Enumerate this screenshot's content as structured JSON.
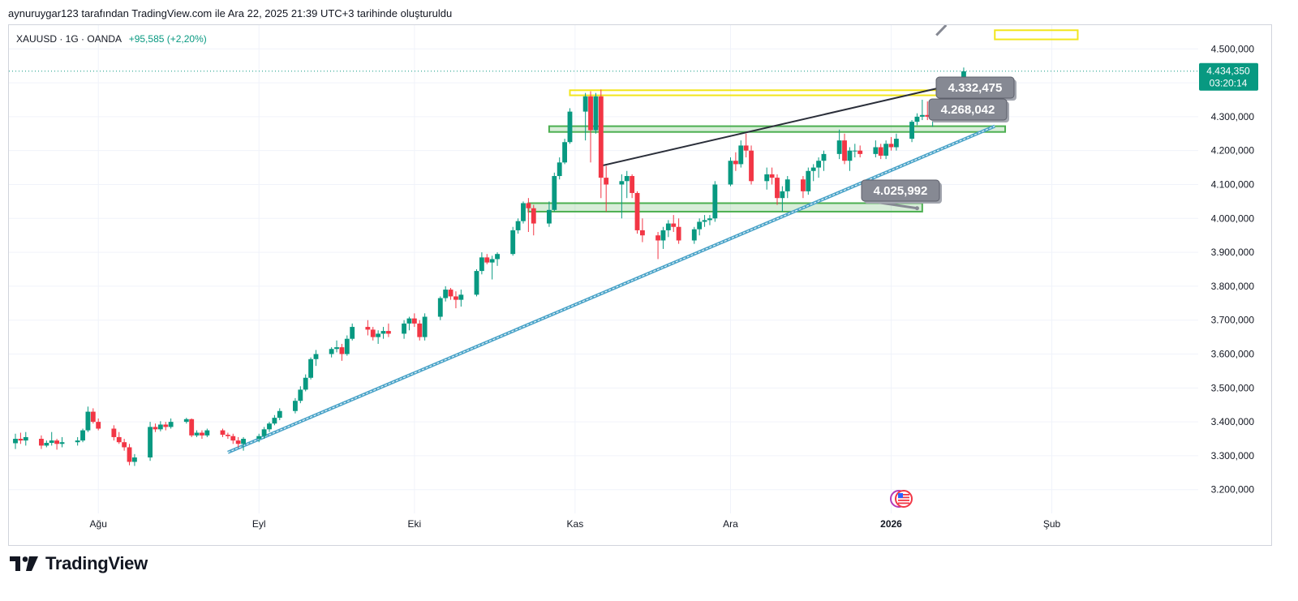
{
  "header": {
    "caption": "aynuruygar123 tarafından TradingView.com ile Ara 22, 2025 21:39 UTC+3 tarihinde oluşturuldu"
  },
  "legend": {
    "symbol": "XAUUSD · 1G · OANDA",
    "change": "+95,585 (+2,20%)"
  },
  "brand": {
    "name": "TradingView",
    "logo_icon": "tradingview-logo-icon"
  },
  "colors": {
    "up": "#089981",
    "down": "#f23645",
    "price_tag": "#089981",
    "callout": "#868993",
    "trend_support": "#4aa3c8",
    "zone_yellow": "#f2e61c",
    "zone_green": "#4caf50"
  },
  "chart_data": {
    "type": "candlestick",
    "symbol": "XAUUSD",
    "interval": "1G",
    "ylim": [
      3130,
      4570
    ],
    "y_ticks": [
      "3.200,000",
      "3.300,000",
      "3.400,000",
      "3.500,000",
      "3.600,000",
      "3.700,000",
      "3.800,000",
      "3.900,000",
      "4.000,000",
      "4.100,000",
      "4.200,000",
      "4.300,000",
      "4.400,000",
      "4.500,000"
    ],
    "y_tick_values": [
      3200,
      3300,
      3400,
      3500,
      3600,
      3700,
      3800,
      3900,
      4000,
      4100,
      4200,
      4300,
      4400,
      4500
    ],
    "x_ticks": [
      {
        "label": "Ağu",
        "date": "2025-08-01",
        "bold": false
      },
      {
        "label": "Eyl",
        "date": "2025-09-01",
        "bold": false
      },
      {
        "label": "Eki",
        "date": "2025-10-01",
        "bold": false
      },
      {
        "label": "Kas",
        "date": "2025-11-01",
        "bold": false
      },
      {
        "label": "Ara",
        "date": "2025-12-01",
        "bold": false
      },
      {
        "label": "2026",
        "date": "2026-01-01",
        "bold": true
      },
      {
        "label": "Şub",
        "date": "2026-02-01",
        "bold": false
      }
    ],
    "x_range": [
      "2025-07-16",
      "2026-02-28"
    ],
    "last_price": {
      "value": "4.434,350",
      "countdown": "03:20:14",
      "price": 4434.35
    },
    "candles": [
      {
        "d": "2025-07-16",
        "o": 3337,
        "h": 3365,
        "l": 3320,
        "c": 3350
      },
      {
        "d": "2025-07-17",
        "o": 3350,
        "h": 3368,
        "l": 3335,
        "c": 3345
      },
      {
        "d": "2025-07-18",
        "o": 3345,
        "h": 3370,
        "l": 3330,
        "c": 3355
      },
      {
        "d": "2025-07-21",
        "o": 3350,
        "h": 3360,
        "l": 3320,
        "c": 3330
      },
      {
        "d": "2025-07-22",
        "o": 3330,
        "h": 3345,
        "l": 3325,
        "c": 3338
      },
      {
        "d": "2025-07-23",
        "o": 3338,
        "h": 3370,
        "l": 3330,
        "c": 3345
      },
      {
        "d": "2025-07-24",
        "o": 3345,
        "h": 3350,
        "l": 3318,
        "c": 3335
      },
      {
        "d": "2025-07-25",
        "o": 3335,
        "h": 3355,
        "l": 3325,
        "c": 3340
      },
      {
        "d": "2025-07-28",
        "o": 3340,
        "h": 3355,
        "l": 3330,
        "c": 3345
      },
      {
        "d": "2025-07-29",
        "o": 3345,
        "h": 3380,
        "l": 3340,
        "c": 3375
      },
      {
        "d": "2025-07-30",
        "o": 3375,
        "h": 3445,
        "l": 3370,
        "c": 3430
      },
      {
        "d": "2025-07-31",
        "o": 3430,
        "h": 3440,
        "l": 3395,
        "c": 3400
      },
      {
        "d": "2025-08-01",
        "o": 3400,
        "h": 3410,
        "l": 3375,
        "c": 3380
      },
      {
        "d": "2025-08-04",
        "o": 3380,
        "h": 3390,
        "l": 3345,
        "c": 3355
      },
      {
        "d": "2025-08-05",
        "o": 3355,
        "h": 3370,
        "l": 3335,
        "c": 3340
      },
      {
        "d": "2025-08-06",
        "o": 3340,
        "h": 3350,
        "l": 3315,
        "c": 3325
      },
      {
        "d": "2025-08-07",
        "o": 3325,
        "h": 3335,
        "l": 3272,
        "c": 3282
      },
      {
        "d": "2025-08-08",
        "o": 3282,
        "h": 3305,
        "l": 3270,
        "c": 3295
      },
      {
        "d": "2025-08-11",
        "o": 3295,
        "h": 3400,
        "l": 3285,
        "c": 3385
      },
      {
        "d": "2025-08-12",
        "o": 3385,
        "h": 3395,
        "l": 3370,
        "c": 3378
      },
      {
        "d": "2025-08-13",
        "o": 3378,
        "h": 3402,
        "l": 3372,
        "c": 3392
      },
      {
        "d": "2025-08-14",
        "o": 3392,
        "h": 3400,
        "l": 3375,
        "c": 3385
      },
      {
        "d": "2025-08-15",
        "o": 3385,
        "h": 3410,
        "l": 3380,
        "c": 3400
      },
      {
        "d": "2025-08-18",
        "o": 3400,
        "h": 3412,
        "l": 3395,
        "c": 3408
      },
      {
        "d": "2025-08-19",
        "o": 3408,
        "h": 3410,
        "l": 3355,
        "c": 3360
      },
      {
        "d": "2025-08-20",
        "o": 3360,
        "h": 3375,
        "l": 3355,
        "c": 3368
      },
      {
        "d": "2025-08-21",
        "o": 3368,
        "h": 3375,
        "l": 3350,
        "c": 3360
      },
      {
        "d": "2025-08-22",
        "o": 3360,
        "h": 3380,
        "l": 3355,
        "c": 3375
      },
      {
        "d": "2025-08-25",
        "o": 3375,
        "h": 3380,
        "l": 3355,
        "c": 3362
      },
      {
        "d": "2025-08-26",
        "o": 3362,
        "h": 3368,
        "l": 3350,
        "c": 3358
      },
      {
        "d": "2025-08-27",
        "o": 3358,
        "h": 3365,
        "l": 3335,
        "c": 3345
      },
      {
        "d": "2025-08-28",
        "o": 3345,
        "h": 3355,
        "l": 3325,
        "c": 3335
      },
      {
        "d": "2025-08-29",
        "o": 3335,
        "h": 3355,
        "l": 3315,
        "c": 3350
      },
      {
        "d": "2025-09-01",
        "o": 3350,
        "h": 3365,
        "l": 3340,
        "c": 3358
      },
      {
        "d": "2025-09-02",
        "o": 3358,
        "h": 3385,
        "l": 3350,
        "c": 3378
      },
      {
        "d": "2025-09-03",
        "o": 3378,
        "h": 3400,
        "l": 3370,
        "c": 3395
      },
      {
        "d": "2025-09-04",
        "o": 3395,
        "h": 3420,
        "l": 3390,
        "c": 3412
      },
      {
        "d": "2025-09-05",
        "o": 3412,
        "h": 3440,
        "l": 3405,
        "c": 3432
      },
      {
        "d": "2025-09-08",
        "o": 3432,
        "h": 3470,
        "l": 3425,
        "c": 3462
      },
      {
        "d": "2025-09-09",
        "o": 3462,
        "h": 3505,
        "l": 3455,
        "c": 3495
      },
      {
        "d": "2025-09-10",
        "o": 3495,
        "h": 3540,
        "l": 3490,
        "c": 3530
      },
      {
        "d": "2025-09-11",
        "o": 3530,
        "h": 3590,
        "l": 3525,
        "c": 3585
      },
      {
        "d": "2025-09-12",
        "o": 3585,
        "h": 3612,
        "l": 3565,
        "c": 3600
      },
      {
        "d": "2025-09-15",
        "o": 3600,
        "h": 3620,
        "l": 3590,
        "c": 3615
      },
      {
        "d": "2025-09-16",
        "o": 3615,
        "h": 3640,
        "l": 3605,
        "c": 3620
      },
      {
        "d": "2025-09-17",
        "o": 3620,
        "h": 3630,
        "l": 3580,
        "c": 3600
      },
      {
        "d": "2025-09-18",
        "o": 3600,
        "h": 3655,
        "l": 3595,
        "c": 3645
      },
      {
        "d": "2025-09-19",
        "o": 3645,
        "h": 3690,
        "l": 3640,
        "c": 3680
      },
      {
        "d": "2025-09-22",
        "o": 3680,
        "h": 3700,
        "l": 3655,
        "c": 3672
      },
      {
        "d": "2025-09-23",
        "o": 3672,
        "h": 3680,
        "l": 3640,
        "c": 3650
      },
      {
        "d": "2025-09-24",
        "o": 3650,
        "h": 3670,
        "l": 3630,
        "c": 3660
      },
      {
        "d": "2025-09-25",
        "o": 3660,
        "h": 3680,
        "l": 3645,
        "c": 3668
      },
      {
        "d": "2025-09-26",
        "o": 3668,
        "h": 3690,
        "l": 3650,
        "c": 3660
      },
      {
        "d": "2025-09-29",
        "o": 3660,
        "h": 3700,
        "l": 3645,
        "c": 3690
      },
      {
        "d": "2025-09-30",
        "o": 3690,
        "h": 3710,
        "l": 3670,
        "c": 3705
      },
      {
        "d": "2025-10-01",
        "o": 3705,
        "h": 3720,
        "l": 3680,
        "c": 3690
      },
      {
        "d": "2025-10-02",
        "o": 3690,
        "h": 3700,
        "l": 3640,
        "c": 3650
      },
      {
        "d": "2025-10-03",
        "o": 3650,
        "h": 3720,
        "l": 3640,
        "c": 3710
      },
      {
        "d": "2025-10-06",
        "o": 3710,
        "h": 3770,
        "l": 3700,
        "c": 3765
      },
      {
        "d": "2025-10-07",
        "o": 3765,
        "h": 3800,
        "l": 3755,
        "c": 3790
      },
      {
        "d": "2025-10-08",
        "o": 3790,
        "h": 3795,
        "l": 3760,
        "c": 3770
      },
      {
        "d": "2025-10-09",
        "o": 3770,
        "h": 3785,
        "l": 3735,
        "c": 3760
      },
      {
        "d": "2025-10-10",
        "o": 3760,
        "h": 3790,
        "l": 3740,
        "c": 3775
      },
      {
        "d": "2025-10-13",
        "o": 3775,
        "h": 3850,
        "l": 3770,
        "c": 3845
      },
      {
        "d": "2025-10-14",
        "o": 3845,
        "h": 3900,
        "l": 3835,
        "c": 3885
      },
      {
        "d": "2025-10-15",
        "o": 3885,
        "h": 3895,
        "l": 3865,
        "c": 3870
      },
      {
        "d": "2025-10-16",
        "o": 3870,
        "h": 3890,
        "l": 3820,
        "c": 3880
      },
      {
        "d": "2025-10-17",
        "o": 3880,
        "h": 3900,
        "l": 3860,
        "c": 3895
      },
      {
        "d": "2025-10-20",
        "o": 3895,
        "h": 3975,
        "l": 3890,
        "c": 3965
      },
      {
        "d": "2025-10-21",
        "o": 3965,
        "h": 4000,
        "l": 3955,
        "c": 3992
      },
      {
        "d": "2025-10-22",
        "o": 3992,
        "h": 4050,
        "l": 3985,
        "c": 4045
      },
      {
        "d": "2025-10-23",
        "o": 4045,
        "h": 4060,
        "l": 3960,
        "c": 4030
      },
      {
        "d": "2025-10-24",
        "o": 4030,
        "h": 4040,
        "l": 3950,
        "c": 3985
      },
      {
        "d": "2025-10-27",
        "o": 3985,
        "h": 4050,
        "l": 3975,
        "c": 4025
      },
      {
        "d": "2025-10-28",
        "o": 4025,
        "h": 4135,
        "l": 4020,
        "c": 4125
      },
      {
        "d": "2025-10-29",
        "o": 4125,
        "h": 4180,
        "l": 4115,
        "c": 4165
      },
      {
        "d": "2025-10-30",
        "o": 4165,
        "h": 4235,
        "l": 4160,
        "c": 4225
      },
      {
        "d": "2025-10-31",
        "o": 4225,
        "h": 4325,
        "l": 4220,
        "c": 4315
      },
      {
        "d": "2025-11-03",
        "o": 4315,
        "h": 4370,
        "l": 4230,
        "c": 4360
      },
      {
        "d": "2025-11-04",
        "o": 4360,
        "h": 4375,
        "l": 4165,
        "c": 4260
      },
      {
        "d": "2025-11-05",
        "o": 4260,
        "h": 4370,
        "l": 4250,
        "c": 4360
      },
      {
        "d": "2025-11-06",
        "o": 4360,
        "h": 4380,
        "l": 4060,
        "c": 4120
      },
      {
        "d": "2025-11-07",
        "o": 4120,
        "h": 4155,
        "l": 4020,
        "c": 4100
      },
      {
        "d": "2025-11-10",
        "o": 4100,
        "h": 4130,
        "l": 4000,
        "c": 4110
      },
      {
        "d": "2025-11-11",
        "o": 4110,
        "h": 4140,
        "l": 4060,
        "c": 4125
      },
      {
        "d": "2025-11-12",
        "o": 4125,
        "h": 4130,
        "l": 4060,
        "c": 4075
      },
      {
        "d": "2025-11-13",
        "o": 4075,
        "h": 4080,
        "l": 3955,
        "c": 3965
      },
      {
        "d": "2025-11-14",
        "o": 3965,
        "h": 4000,
        "l": 3930,
        "c": 3950
      },
      {
        "d": "2025-11-17",
        "o": 3950,
        "h": 3960,
        "l": 3880,
        "c": 3935
      },
      {
        "d": "2025-11-18",
        "o": 3935,
        "h": 3975,
        "l": 3910,
        "c": 3965
      },
      {
        "d": "2025-11-19",
        "o": 3965,
        "h": 3995,
        "l": 3945,
        "c": 3985
      },
      {
        "d": "2025-11-20",
        "o": 3985,
        "h": 4010,
        "l": 3960,
        "c": 3975
      },
      {
        "d": "2025-11-21",
        "o": 3975,
        "h": 4000,
        "l": 3925,
        "c": 3935
      },
      {
        "d": "2025-11-24",
        "o": 3935,
        "h": 3975,
        "l": 3925,
        "c": 3968
      },
      {
        "d": "2025-11-25",
        "o": 3968,
        "h": 4000,
        "l": 3950,
        "c": 3990
      },
      {
        "d": "2025-11-26",
        "o": 3990,
        "h": 4010,
        "l": 3975,
        "c": 3995
      },
      {
        "d": "2025-11-27",
        "o": 3995,
        "h": 4010,
        "l": 3980,
        "c": 4000
      },
      {
        "d": "2025-11-28",
        "o": 4000,
        "h": 4110,
        "l": 3990,
        "c": 4100
      },
      {
        "d": "2025-12-01",
        "o": 4100,
        "h": 4180,
        "l": 4095,
        "c": 4170
      },
      {
        "d": "2025-12-02",
        "o": 4170,
        "h": 4195,
        "l": 4140,
        "c": 4160
      },
      {
        "d": "2025-12-03",
        "o": 4160,
        "h": 4230,
        "l": 4150,
        "c": 4215
      },
      {
        "d": "2025-12-04",
        "o": 4215,
        "h": 4250,
        "l": 4180,
        "c": 4200
      },
      {
        "d": "2025-12-05",
        "o": 4200,
        "h": 4215,
        "l": 4100,
        "c": 4110
      },
      {
        "d": "2025-12-08",
        "o": 4110,
        "h": 4150,
        "l": 4085,
        "c": 4130
      },
      {
        "d": "2025-12-09",
        "o": 4130,
        "h": 4150,
        "l": 4100,
        "c": 4120
      },
      {
        "d": "2025-12-10",
        "o": 4120,
        "h": 4130,
        "l": 4040,
        "c": 4060
      },
      {
        "d": "2025-12-11",
        "o": 4060,
        "h": 4095,
        "l": 4020,
        "c": 4080
      },
      {
        "d": "2025-12-12",
        "o": 4080,
        "h": 4125,
        "l": 4060,
        "c": 4115
      },
      {
        "d": "2025-12-15",
        "o": 4115,
        "h": 4125,
        "l": 4060,
        "c": 4080
      },
      {
        "d": "2025-12-16",
        "o": 4080,
        "h": 4150,
        "l": 4070,
        "c": 4140
      },
      {
        "d": "2025-12-17",
        "o": 4140,
        "h": 4160,
        "l": 4110,
        "c": 4150
      },
      {
        "d": "2025-12-18",
        "o": 4150,
        "h": 4180,
        "l": 4120,
        "c": 4170
      },
      {
        "d": "2025-12-19",
        "o": 4170,
        "h": 4200,
        "l": 4140,
        "c": 4190
      },
      {
        "d": "2025-12-22",
        "o": 4190,
        "h": 4262,
        "l": 4175,
        "c": 4230
      },
      {
        "d": "2025-12-23",
        "o": 4230,
        "h": 4250,
        "l": 4160,
        "c": 4170
      },
      {
        "d": "2025-12-24",
        "o": 4170,
        "h": 4210,
        "l": 4140,
        "c": 4200
      },
      {
        "d": "2025-12-25",
        "o": 4200,
        "h": 4220,
        "l": 4180,
        "c": 4200
      },
      {
        "d": "2025-12-26",
        "o": 4200,
        "h": 4215,
        "l": 4180,
        "c": 4190
      },
      {
        "d": "2025-12-29",
        "o": 4190,
        "h": 4230,
        "l": 4180,
        "c": 4210
      },
      {
        "d": "2025-12-30",
        "o": 4210,
        "h": 4220,
        "l": 4175,
        "c": 4185
      },
      {
        "d": "2025-12-31",
        "o": 4185,
        "h": 4230,
        "l": 4175,
        "c": 4220
      },
      {
        "d": "2026-01-01",
        "o": 4220,
        "h": 4240,
        "l": 4200,
        "c": 4210
      },
      {
        "d": "2026-01-02",
        "o": 4210,
        "h": 4250,
        "l": 4200,
        "c": 4235
      },
      {
        "d": "2026-01-05",
        "o": 4235,
        "h": 4290,
        "l": 4225,
        "c": 4285
      },
      {
        "d": "2026-01-06",
        "o": 4285,
        "h": 4310,
        "l": 4275,
        "c": 4300
      },
      {
        "d": "2026-01-07",
        "o": 4300,
        "h": 4350,
        "l": 4290,
        "c": 4305
      },
      {
        "d": "2026-01-08",
        "o": 4305,
        "h": 4345,
        "l": 4290,
        "c": 4300
      },
      {
        "d": "2026-01-09",
        "o": 4300,
        "h": 4320,
        "l": 4270,
        "c": 4305
      },
      {
        "d": "2026-01-12",
        "o": 4305,
        "h": 4360,
        "l": 4300,
        "c": 4335
      },
      {
        "d": "2026-01-13",
        "o": 4335,
        "h": 4375,
        "l": 4315,
        "c": 4320
      },
      {
        "d": "2026-01-14",
        "o": 4320,
        "h": 4345,
        "l": 4310,
        "c": 4338
      },
      {
        "d": "2026-01-15",
        "o": 4338,
        "h": 4445,
        "l": 4335,
        "c": 4434
      }
    ],
    "drawings": {
      "zones": [
        {
          "name": "zone-yellow-top",
          "color": "yellow",
          "d1": "2026-01-21",
          "d2": "2026-02-06",
          "p1": 4528,
          "p2": 4555
        },
        {
          "name": "zone-yellow-resistance",
          "color": "yellow",
          "d1": "2025-10-31",
          "d2": "2026-01-15",
          "p1": 4363,
          "p2": 4378
        },
        {
          "name": "zone-green-mid",
          "color": "green",
          "d1": "2025-10-27",
          "d2": "2026-01-23",
          "p1": 4255,
          "p2": 4272
        },
        {
          "name": "zone-green-support",
          "color": "green",
          "d1": "2025-10-23",
          "d2": "2026-01-07",
          "p1": 4020,
          "p2": 4045
        }
      ],
      "trend_upper": {
        "d1": "2025-11-06",
        "p1": 4155,
        "d2": "2026-01-16",
        "p2": 4405
      },
      "trend_support": {
        "d1": "2025-08-26",
        "p1": 3310,
        "d2": "2026-01-21",
        "p2": 4272
      },
      "callouts": [
        {
          "label": "4.332,475",
          "value": 4332.475,
          "anchor_date": "2026-01-15",
          "anchor_price": 4385
        },
        {
          "label": "4.268,042",
          "value": 4268.042,
          "anchor_date": "2026-01-16",
          "anchor_price": 4335
        },
        {
          "label": "4.025,992",
          "value": 4025.992,
          "anchor_date": "2026-01-06",
          "anchor_price": 4030
        }
      ],
      "top_callout": {
        "anchor_date": "2026-01-21",
        "anchor_price": 4545,
        "tip_date": "2026-02-06",
        "tip_price": 4577
      }
    },
    "event_icon": "us-flag-event-icon",
    "grid": true
  }
}
